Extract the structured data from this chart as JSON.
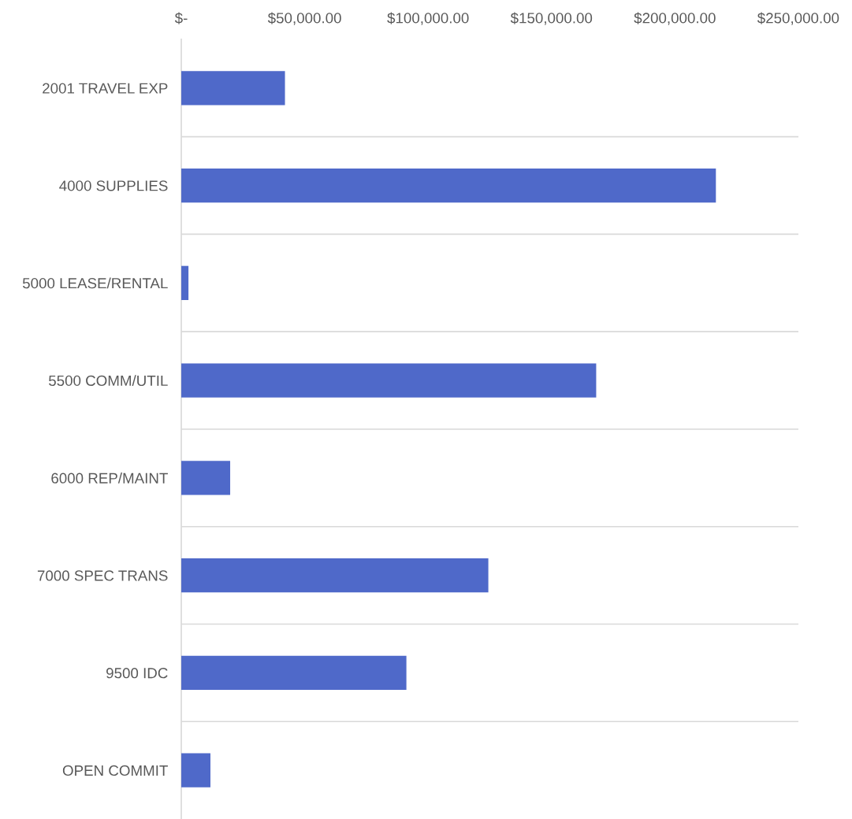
{
  "chart_data": {
    "type": "bar",
    "orientation": "horizontal",
    "categories": [
      "2001 TRAVEL EXP",
      "4000 SUPPLIES",
      "5000 LEASE/RENTAL",
      "5500 COMM/UTIL",
      "6000 REP/MAINT",
      "7000 SPEC TRANS",
      "9500 IDC",
      "OPEN COMMIT"
    ],
    "values": [
      42000,
      216600,
      2900,
      168100,
      19800,
      124400,
      91200,
      11800
    ],
    "color": "#4f69c9",
    "xlim": [
      0,
      250000
    ],
    "xticks": [
      {
        "value": 0,
        "label": "$-"
      },
      {
        "value": 50000,
        "label": "$50,000.00"
      },
      {
        "value": 100000,
        "label": "$100,000.00"
      },
      {
        "value": 150000,
        "label": "$150,000.00"
      },
      {
        "value": 200000,
        "label": "$200,000.00"
      },
      {
        "value": 250000,
        "label": "$250,000.00"
      }
    ],
    "grid": "y",
    "legend": false
  }
}
